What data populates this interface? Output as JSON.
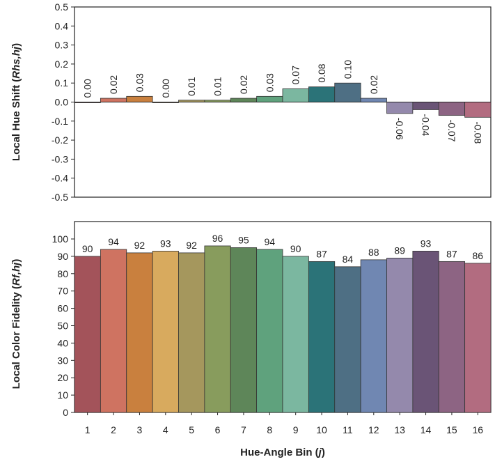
{
  "chart_data": [
    {
      "type": "bar",
      "categories": [
        "1",
        "2",
        "3",
        "4",
        "5",
        "6",
        "7",
        "8",
        "9",
        "10",
        "11",
        "12",
        "13",
        "14",
        "15",
        "16"
      ],
      "values": [
        0.0,
        0.02,
        0.03,
        0.0,
        0.01,
        0.01,
        0.02,
        0.03,
        0.07,
        0.08,
        0.1,
        0.02,
        -0.06,
        -0.04,
        -0.07,
        -0.08
      ],
      "data_labels": [
        "0.00",
        "0.02",
        "0.03",
        "0.00",
        "0.01",
        "0.01",
        "0.02",
        "0.03",
        "0.07",
        "0.08",
        "0.10",
        "0.02",
        "-0.06",
        "-0.04",
        "-0.07",
        "-0.08"
      ],
      "ylabel": "Local Hue Shift (",
      "ylabel_sub": "Rhs,hj",
      "ylabel_end": ")",
      "ylim": [
        -0.5,
        0.5
      ],
      "yticks": [
        "0.5",
        "0.4",
        "0.3",
        "0.2",
        "0.1",
        "0.0",
        "-0.1",
        "-0.2",
        "-0.3",
        "-0.4",
        "-0.5"
      ],
      "grid": false,
      "label_orientation": "vertical"
    },
    {
      "type": "bar",
      "categories": [
        "1",
        "2",
        "3",
        "4",
        "5",
        "6",
        "7",
        "8",
        "9",
        "10",
        "11",
        "12",
        "13",
        "14",
        "15",
        "16"
      ],
      "values": [
        90,
        94,
        92,
        93,
        92,
        96,
        95,
        94,
        90,
        87,
        84,
        88,
        89,
        93,
        87,
        86
      ],
      "data_labels": [
        "90",
        "94",
        "92",
        "93",
        "92",
        "96",
        "95",
        "94",
        "90",
        "87",
        "84",
        "88",
        "89",
        "93",
        "87",
        "86"
      ],
      "xlabel": "Hue-Angle Bin (",
      "xlabel_sub": "j",
      "xlabel_end": ")",
      "ylabel": "Local Color Fidelity (",
      "ylabel_sub": "Rf,hj",
      "ylabel_end": ")",
      "ylim": [
        0,
        100
      ],
      "yticks": [
        "0",
        "10",
        "20",
        "30",
        "40",
        "50",
        "60",
        "70",
        "80",
        "90",
        "100"
      ],
      "grid": false
    }
  ],
  "colors": {
    "bars": [
      "#a3535a",
      "#cf7361",
      "#c9803e",
      "#d8aa5e",
      "#a5975d",
      "#889c5d",
      "#5e8659",
      "#5fa27d",
      "#7bb7a0",
      "#2b7378",
      "#4e6f84",
      "#7087b2",
      "#9489ac",
      "#6a5476",
      "#8d6483",
      "#b26c80"
    ],
    "axis": "#222222"
  }
}
